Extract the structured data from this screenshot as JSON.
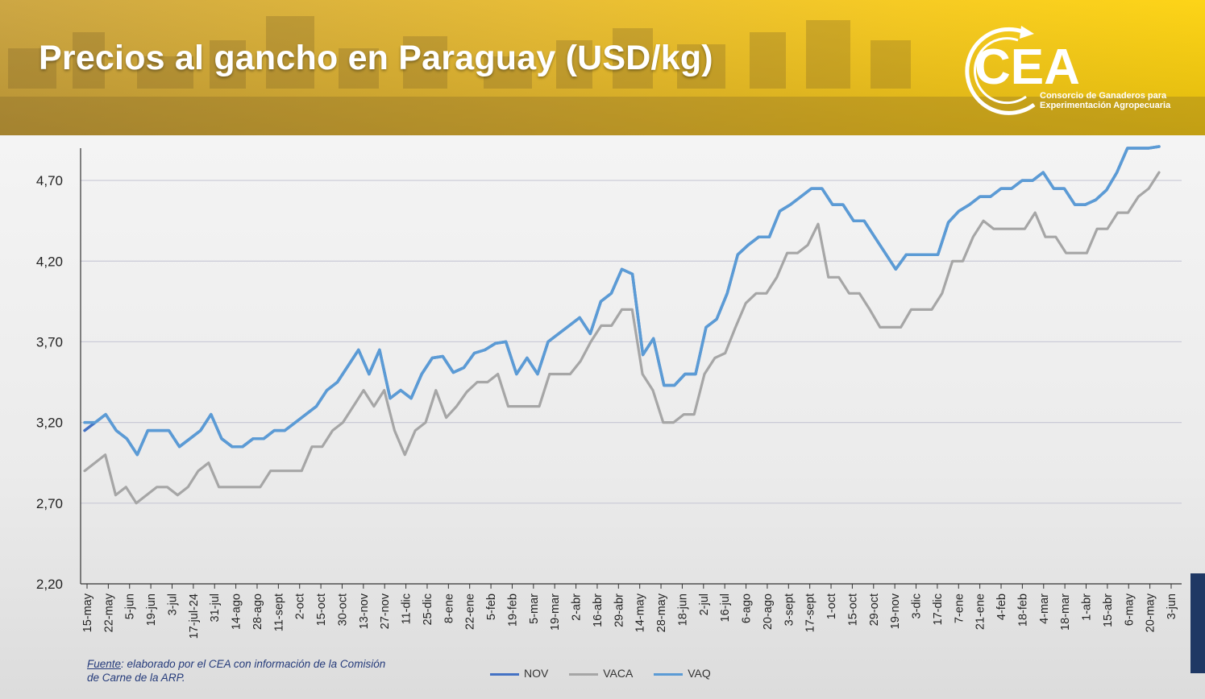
{
  "header": {
    "title": "Precios al gancho en Paraguay (USD/kg)",
    "logo_text": "CEA",
    "logo_subtitle_line1": "Consorcio de Ganaderos para",
    "logo_subtitle_line2": "Experimentación Agropecuaria"
  },
  "source": {
    "label": "Fuente",
    "line1": ": elaborado por el CEA con información de la Comisión",
    "line2": "de Carne de la ARP."
  },
  "colors": {
    "NOV": "#4472c4",
    "VACA": "#a6a6a6",
    "VAQ": "#5b9bd5",
    "accent_bar": "#1f3864"
  },
  "chart_data": {
    "type": "line",
    "ylim": [
      2.2,
      4.9
    ],
    "yticks": [
      "2,20",
      "2,70",
      "3,20",
      "3,70",
      "4,20",
      "4,70"
    ],
    "ytick_values": [
      2.2,
      2.7,
      3.2,
      3.7,
      4.2,
      4.7
    ],
    "xtick_labels": [
      "15-may",
      "22-may",
      "5-jun",
      "19-jun",
      "3-jul",
      "17-jul-24",
      "31-jul",
      "14-ago",
      "28-ago",
      "11-sept",
      "2-oct",
      "15-oct",
      "30-oct",
      "13-nov",
      "27-nov",
      "11-dic",
      "25-dic",
      "8-ene",
      "22-ene",
      "5-feb",
      "19-feb",
      "5-mar",
      "19-mar",
      "2-abr",
      "16-abr",
      "29-abr",
      "14-may",
      "28-may",
      "18-jun",
      "2-jul",
      "16-jul",
      "6-ago",
      "20-ago",
      "3-sept",
      "17-sept",
      "1-oct",
      "15-oct",
      "29-oct",
      "19-nov",
      "3-dic",
      "17-dic",
      "7-ene",
      "21-ene",
      "4-feb",
      "18-feb",
      "4-mar",
      "18-mar",
      "1-abr",
      "15-abr",
      "6-may",
      "20-may",
      "3-jun"
    ],
    "legend_position": "bottom",
    "series": [
      {
        "name": "NOV",
        "values": [
          3.15,
          3.2,
          3.25,
          3.15,
          3.1,
          3.0,
          3.15,
          3.15,
          3.15,
          3.05,
          3.1,
          3.15,
          3.25,
          3.1,
          3.05,
          3.05,
          3.1,
          3.1,
          3.15,
          3.15,
          3.2,
          3.25,
          3.3,
          3.4,
          3.45,
          3.55,
          3.65,
          3.5,
          3.65,
          3.35,
          3.4,
          3.35,
          3.5,
          3.6,
          3.61,
          3.51,
          3.54,
          3.63,
          3.65,
          3.69,
          3.7,
          3.5,
          3.6,
          3.5,
          3.7,
          3.75,
          3.8,
          3.85,
          3.75,
          3.95,
          4.0,
          4.15,
          4.12,
          3.62,
          3.72,
          3.43,
          3.43,
          3.5,
          3.5,
          3.79,
          3.84,
          4.0,
          4.24,
          4.3,
          4.35,
          4.35,
          4.51,
          4.55,
          4.6,
          4.65,
          4.65,
          4.55,
          4.55,
          4.45,
          4.45,
          4.35,
          4.25,
          4.15,
          4.24,
          4.24,
          4.24,
          4.24,
          4.44,
          4.51,
          4.55,
          4.6,
          4.6,
          4.65,
          4.65,
          4.7,
          4.7,
          4.75,
          4.65,
          4.65,
          4.55,
          4.55,
          4.58,
          4.64,
          4.75,
          4.9,
          4.9,
          4.9,
          4.95
        ]
      },
      {
        "name": "VACA",
        "values": [
          2.9,
          2.95,
          3.0,
          2.75,
          2.8,
          2.7,
          2.75,
          2.8,
          2.8,
          2.75,
          2.8,
          2.9,
          2.95,
          2.8,
          2.8,
          2.8,
          2.8,
          2.8,
          2.9,
          2.9,
          2.9,
          2.9,
          3.05,
          3.05,
          3.15,
          3.2,
          3.3,
          3.4,
          3.3,
          3.4,
          3.15,
          3.0,
          3.15,
          3.2,
          3.4,
          3.23,
          3.3,
          3.39,
          3.45,
          3.45,
          3.5,
          3.3,
          3.3,
          3.3,
          3.3,
          3.5,
          3.5,
          3.5,
          3.58,
          3.7,
          3.8,
          3.8,
          3.9,
          3.9,
          3.5,
          3.4,
          3.2,
          3.2,
          3.25,
          3.25,
          3.5,
          3.6,
          3.63,
          3.79,
          3.94,
          4.0,
          4.0,
          4.1,
          4.25,
          4.25,
          4.3,
          4.43,
          4.1,
          4.1,
          4.0,
          4.0,
          3.9,
          3.79,
          3.79,
          3.79,
          3.9,
          3.9,
          3.9,
          4.0,
          4.2,
          4.2,
          4.35,
          4.45,
          4.4,
          4.4,
          4.4,
          4.4,
          4.5,
          4.35,
          4.35,
          4.25,
          4.25,
          4.25,
          4.4,
          4.4,
          4.5,
          4.5,
          4.6,
          4.65,
          4.75
        ]
      },
      {
        "name": "VAQ",
        "values": [
          3.2,
          3.2,
          3.25,
          3.15,
          3.1,
          3.0,
          3.15,
          3.15,
          3.15,
          3.05,
          3.1,
          3.15,
          3.25,
          3.1,
          3.05,
          3.05,
          3.1,
          3.1,
          3.15,
          3.15,
          3.2,
          3.25,
          3.3,
          3.4,
          3.45,
          3.55,
          3.65,
          3.5,
          3.65,
          3.35,
          3.4,
          3.35,
          3.5,
          3.6,
          3.61,
          3.51,
          3.54,
          3.63,
          3.65,
          3.69,
          3.7,
          3.5,
          3.6,
          3.5,
          3.7,
          3.75,
          3.8,
          3.85,
          3.75,
          3.95,
          4.0,
          4.15,
          4.12,
          3.62,
          3.72,
          3.43,
          3.43,
          3.5,
          3.5,
          3.79,
          3.84,
          4.0,
          4.24,
          4.3,
          4.35,
          4.35,
          4.51,
          4.55,
          4.6,
          4.65,
          4.65,
          4.55,
          4.55,
          4.45,
          4.45,
          4.35,
          4.25,
          4.15,
          4.24,
          4.24,
          4.24,
          4.24,
          4.44,
          4.51,
          4.55,
          4.6,
          4.6,
          4.65,
          4.65,
          4.7,
          4.7,
          4.75,
          4.65,
          4.65,
          4.55,
          4.55,
          4.58,
          4.64,
          4.75,
          4.9,
          4.9,
          4.9,
          4.95
        ]
      }
    ]
  }
}
